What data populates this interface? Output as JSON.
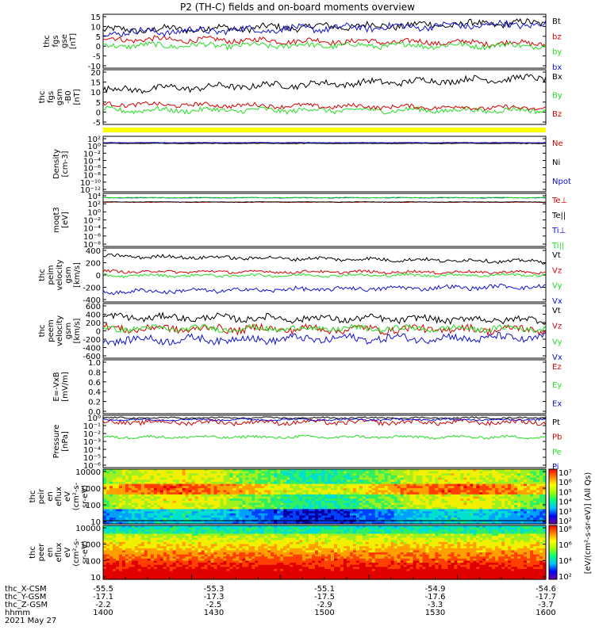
{
  "title": "P2 (TH-C) fields and on-board moments overview",
  "colors": {
    "black": "#000000",
    "red": "#d40000",
    "green": "#22dd22",
    "blue": "#1010d0",
    "yellow": "#ffff00"
  },
  "chart_data": [
    {
      "type": "line",
      "ylabel": [
        "thc",
        "fgs",
        "gse",
        "[nT]"
      ],
      "ylim": [
        -10,
        15
      ],
      "yticks": [
        "15",
        "10",
        "5",
        "0",
        "-5",
        "-10"
      ],
      "series": [
        {
          "name": "Bt",
          "color": "black",
          "level": 7.5,
          "trend": 3.5,
          "noise": 1.5
        },
        {
          "name": "bz",
          "color": "red",
          "level": 3.5,
          "trend": -2.0,
          "noise": 1.2
        },
        {
          "name": "by",
          "color": "green",
          "level": 0.5,
          "trend": 0,
          "noise": 1.2
        },
        {
          "name": "bx",
          "color": "blue",
          "level": 6.5,
          "trend": 4.0,
          "noise": 1.5
        }
      ]
    },
    {
      "type": "line",
      "ylabel": [
        "thc",
        "fgs",
        "gsm",
        "-B0",
        "[nT]"
      ],
      "ylim": [
        -7,
        20
      ],
      "yticks": [
        "20",
        "15",
        "10",
        "5",
        "0",
        "-5"
      ],
      "series": [
        {
          "name": "Bx",
          "color": "black",
          "level": 10,
          "trend": 6,
          "noise": 1.5
        },
        {
          "name": "By",
          "color": "green",
          "level": 0,
          "trend": 0,
          "noise": 1.2
        },
        {
          "name": "Bz",
          "color": "red",
          "level": 3,
          "trend": -2,
          "noise": 1.0
        }
      ]
    },
    {
      "type": "line",
      "ylabel": [
        "Density",
        "[cm-3]"
      ],
      "log": true,
      "ylim": [
        -12,
        2
      ],
      "yticks": [
        "10²",
        "10⁰",
        "10⁻²",
        "10⁻⁴",
        "10⁻⁶",
        "10⁻⁸",
        "10⁻¹⁰",
        "10⁻¹²"
      ],
      "series": [
        {
          "name": "Ne",
          "color": "red",
          "level": 0.3,
          "trend": 0,
          "noise": 0.05
        },
        {
          "name": "Ni",
          "color": "black",
          "level": 0.2,
          "trend": 0,
          "noise": 0.05
        },
        {
          "name": "Npot",
          "color": "blue",
          "level": 0.4,
          "trend": 0,
          "noise": 0.05
        }
      ]
    },
    {
      "type": "line",
      "ylabel": [
        "moqt3",
        "[eV]"
      ],
      "log": true,
      "ylim": [
        -8,
        4
      ],
      "yticks": [
        "10⁴",
        "10²",
        "10⁰",
        "10⁻²",
        "10⁻⁴",
        "10⁻⁶",
        "10⁻⁸"
      ],
      "series": [
        {
          "name": "Te⊥",
          "color": "red",
          "level": 2.0,
          "trend": 0,
          "noise": 0.05
        },
        {
          "name": "Te||",
          "color": "black",
          "level": 2.05,
          "trend": 0,
          "noise": 0.05
        },
        {
          "name": "Ti⊥",
          "color": "blue",
          "level": 3.0,
          "trend": 0,
          "noise": 0.05
        },
        {
          "name": "Ti||",
          "color": "green",
          "level": 3.05,
          "trend": 0,
          "noise": 0.05
        }
      ]
    },
    {
      "type": "line",
      "ylabel": [
        "thc",
        "peim",
        "velocity",
        "gsm",
        "[km/s]"
      ],
      "ylim": [
        -400,
        400
      ],
      "yticks": [
        "400",
        "200",
        "0",
        "-200",
        "-400"
      ],
      "series": [
        {
          "name": "Vt",
          "color": "black",
          "level": 280,
          "trend": -80,
          "noise": 25
        },
        {
          "name": "Vz",
          "color": "red",
          "level": 50,
          "trend": -10,
          "noise": 20
        },
        {
          "name": "Vy",
          "color": "green",
          "level": -10,
          "trend": 10,
          "noise": 20
        },
        {
          "name": "Vx",
          "color": "blue",
          "level": -250,
          "trend": 80,
          "noise": 30
        }
      ]
    },
    {
      "type": "line",
      "ylabel": [
        "thc",
        "peem",
        "velocity",
        "gsm",
        "[km/s]"
      ],
      "ylim": [
        -600,
        600
      ],
      "yticks": [
        "600",
        "400",
        "200",
        "0",
        "-200",
        "-400",
        "-600"
      ],
      "series": [
        {
          "name": "Vt",
          "color": "black",
          "level": 300,
          "trend": -60,
          "noise": 70
        },
        {
          "name": "Vz",
          "color": "red",
          "level": 50,
          "trend": -20,
          "noise": 80
        },
        {
          "name": "Vy",
          "color": "green",
          "level": 50,
          "trend": 0,
          "noise": 60
        },
        {
          "name": "Vx",
          "color": "blue",
          "level": -200,
          "trend": 50,
          "noise": 80
        }
      ]
    },
    {
      "type": "line",
      "ylabel": [
        "E=-VxB",
        "[mV/m]"
      ],
      "ylim": [
        0,
        1
      ],
      "yticks": [
        "1.0",
        "0.8",
        "0.6",
        "0.4",
        "0.2",
        "0.0"
      ],
      "series": [
        {
          "name": "Ez",
          "color": "red"
        },
        {
          "name": "Ey",
          "color": "green"
        },
        {
          "name": "Ex",
          "color": "blue"
        }
      ]
    },
    {
      "type": "line",
      "ylabel": [
        "Pressure",
        "[nPa]"
      ],
      "log": true,
      "ylim": [
        -6,
        0
      ],
      "yticks": [
        "10⁰",
        "10⁻¹",
        "10⁻²",
        "10⁻³",
        "10⁻⁴",
        "10⁻⁵",
        "10⁻⁶"
      ],
      "series": [
        {
          "name": "Pt",
          "color": "black",
          "level": -0.3,
          "trend": 0,
          "noise": 0.08
        },
        {
          "name": "Pb",
          "color": "red",
          "level": -0.8,
          "trend": 0,
          "noise": 0.25
        },
        {
          "name": "Pe",
          "color": "green",
          "level": -2.5,
          "trend": 0,
          "noise": 0.15
        },
        {
          "name": "Pi",
          "color": "blue",
          "level": -0.5,
          "trend": 0,
          "noise": 0.1
        }
      ]
    },
    {
      "type": "heatmap",
      "ylabel": [
        "thc",
        "peir",
        "en",
        "eflux",
        "eV",
        "(cm²-s-",
        "sr-eV)"
      ],
      "log": true,
      "yticks": [
        "10000",
        "1000",
        "100",
        "10"
      ]
    },
    {
      "type": "heatmap",
      "ylabel": [
        "thc",
        "peer",
        "en",
        "eflux",
        "eV",
        "(cm²-s-",
        "sr-eV)"
      ],
      "log": true,
      "yticks": [
        "10000",
        "1000",
        "100",
        "10"
      ]
    }
  ],
  "colorbars": [
    {
      "ticks": [
        "10⁷",
        "10⁶",
        "10⁵",
        "10⁴",
        "10³",
        "10²"
      ],
      "label": "[eV/(cm²-s-sr-eV)] (All Qs)"
    },
    {
      "ticks": [
        "10⁸",
        "10⁶",
        "10⁴",
        "10²"
      ],
      "label": "[eV/(cm²-s-sr-eV)] (All Qs)"
    }
  ],
  "xaxis": {
    "row_labels": [
      "thc_X-CSM",
      "thc_Y-GSM",
      "thc_Z-GSM",
      "hhmm",
      "2021 May 27"
    ],
    "columns": [
      {
        "x": "-55.5",
        "y": "-17.1",
        "z": "-2.2",
        "hhmm": "1400"
      },
      {
        "x": "-55.3",
        "y": "-17.3",
        "z": "-2.5",
        "hhmm": "1430"
      },
      {
        "x": "-55.1",
        "y": "-17.5",
        "z": "-2.9",
        "hhmm": "1500"
      },
      {
        "x": "-54.9",
        "y": "-17.6",
        "z": "-3.3",
        "hhmm": "1530"
      },
      {
        "x": "-54.6",
        "y": "-17.7",
        "z": "-3.7",
        "hhmm": "1600"
      }
    ]
  }
}
